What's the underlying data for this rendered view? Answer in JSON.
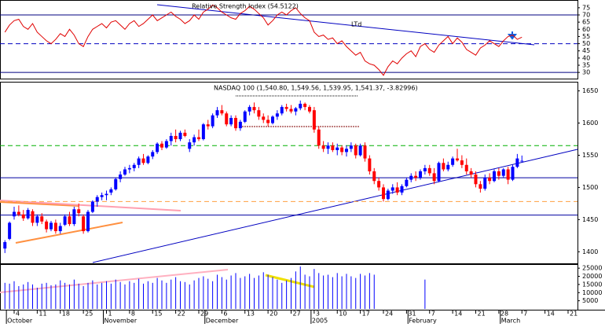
{
  "chart_data": {
    "type": "candlestick",
    "title": "NASDAQ 100 (1,540.80, 1,549.56, 1,539.95, 1,541.37, -3.82996)",
    "categories": [
      null,
      null,
      "4",
      null,
      null,
      null,
      null,
      "11",
      null,
      null,
      null,
      null,
      "18",
      null,
      null,
      null,
      null,
      "25",
      null,
      null,
      null,
      null,
      "1",
      null,
      null,
      null,
      null,
      "8",
      null,
      null,
      null,
      null,
      "15",
      null,
      null,
      null,
      null,
      "22",
      null,
      null,
      null,
      null,
      "29",
      null,
      null,
      null,
      null,
      "6",
      null,
      null,
      null,
      null,
      "13",
      null,
      null,
      null,
      null,
      "20",
      null,
      null,
      null,
      null,
      "27",
      null,
      null,
      null,
      null,
      "3",
      null,
      null,
      null,
      null,
      "10",
      null,
      null,
      null,
      null,
      "17",
      null,
      null,
      null,
      null,
      "24",
      null,
      null,
      null,
      null,
      "31",
      null,
      null,
      null,
      null,
      "7",
      null,
      null,
      null,
      null,
      "14",
      null,
      null,
      null,
      null,
      "21",
      null,
      null,
      null,
      null,
      "28",
      null,
      null,
      null,
      null,
      "7",
      null,
      null,
      null,
      null,
      "14",
      null,
      null,
      null,
      null,
      "21",
      null,
      null,
      null,
      null,
      null
    ],
    "months": [
      "October",
      "November",
      "December",
      "2005",
      "February",
      "March"
    ],
    "up_color": "#0000ff",
    "down_color": "#ff0000",
    "open": [
      1405,
      1420,
      1455,
      1462,
      1458,
      1452,
      1463,
      1445,
      1455,
      1447,
      1435,
      1445,
      1432,
      1442,
      1455,
      1443,
      1466,
      1455,
      1432,
      1462,
      1478,
      1485,
      1488,
      1492,
      1497,
      1513,
      1520,
      1528,
      1530,
      1535,
      1545,
      1538,
      1548,
      1555,
      1568,
      1562,
      1572,
      1580,
      1575,
      1585,
      1560,
      1570,
      1578,
      1575,
      1598,
      1595,
      1612,
      1620,
      1615,
      1598,
      1608,
      1592,
      1602,
      1618,
      1625,
      1620,
      1610,
      1605,
      1600,
      1610,
      1615,
      1625,
      1622,
      1618,
      1623,
      1630,
      1625,
      1620,
      1590,
      1565,
      1560,
      1565,
      1558,
      1562,
      1555,
      1560,
      1565,
      1550,
      1565,
      1545,
      1525,
      1510,
      1500,
      1482,
      1495,
      1500,
      1492,
      1502,
      1512,
      1518,
      1515,
      1525,
      1530,
      1522,
      1510,
      1538,
      1528,
      1535,
      1545,
      1542,
      1535,
      1525,
      1520,
      1505,
      1498,
      1515,
      1510,
      1525,
      1518,
      1528,
      1512,
      1532,
      1540.8,
      null,
      null,
      null,
      null,
      null,
      null,
      null,
      null,
      null,
      null,
      null,
      null,
      null,
      null,
      null
    ],
    "high": [
      1418,
      1447,
      1470,
      1472,
      1465,
      1468,
      1466,
      1458,
      1460,
      1450,
      1448,
      1450,
      1445,
      1458,
      1462,
      1470,
      1475,
      1458,
      1465,
      1480,
      1488,
      1492,
      1495,
      1500,
      1515,
      1525,
      1532,
      1535,
      1538,
      1548,
      1552,
      1550,
      1558,
      1570,
      1572,
      1575,
      1585,
      1590,
      1588,
      1590,
      1575,
      1582,
      1590,
      1600,
      1605,
      1615,
      1625,
      1628,
      1618,
      1612,
      1612,
      1605,
      1620,
      1628,
      1632,
      1625,
      1615,
      1612,
      1612,
      1620,
      1628,
      1630,
      1628,
      1625,
      1635,
      1632,
      1628,
      1625,
      1595,
      1572,
      1570,
      1570,
      1568,
      1565,
      1565,
      1570,
      1568,
      1568,
      1570,
      1550,
      1530,
      1515,
      1505,
      1498,
      1505,
      1508,
      1505,
      1515,
      1522,
      1525,
      1528,
      1535,
      1535,
      1530,
      1540,
      1545,
      1540,
      1548,
      1560,
      1550,
      1545,
      1530,
      1525,
      1510,
      1520,
      1522,
      1528,
      1530,
      1530,
      1532,
      1535,
      1552,
      1549.56,
      null,
      null,
      null,
      null,
      null,
      null,
      null,
      null,
      null,
      null,
      null,
      null,
      null,
      null,
      null
    ],
    "low": [
      1398,
      1418,
      1450,
      1455,
      1448,
      1450,
      1440,
      1440,
      1443,
      1430,
      1432,
      1428,
      1428,
      1440,
      1440,
      1440,
      1455,
      1428,
      1430,
      1460,
      1470,
      1480,
      1480,
      1488,
      1495,
      1508,
      1518,
      1522,
      1525,
      1530,
      1535,
      1536,
      1544,
      1552,
      1558,
      1560,
      1565,
      1570,
      1572,
      1578,
      1555,
      1565,
      1572,
      1573,
      1590,
      1592,
      1608,
      1612,
      1595,
      1595,
      1588,
      1588,
      1600,
      1612,
      1615,
      1605,
      1600,
      1595,
      1598,
      1605,
      1612,
      1618,
      1615,
      1612,
      1620,
      1620,
      1615,
      1585,
      1560,
      1555,
      1552,
      1555,
      1550,
      1550,
      1548,
      1555,
      1545,
      1548,
      1540,
      1520,
      1505,
      1495,
      1478,
      1480,
      1490,
      1488,
      1488,
      1500,
      1508,
      1510,
      1512,
      1520,
      1518,
      1505,
      1508,
      1525,
      1525,
      1532,
      1540,
      1530,
      1520,
      1515,
      1500,
      1492,
      1495,
      1505,
      1508,
      1512,
      1515,
      1505,
      1510,
      1530,
      1539.95,
      null,
      null,
      null,
      null,
      null,
      null,
      null,
      null,
      null,
      null,
      null,
      null,
      null,
      null,
      null
    ],
    "close": [
      1415,
      1445,
      1462,
      1458,
      1452,
      1465,
      1445,
      1455,
      1447,
      1435,
      1445,
      1432,
      1440,
      1455,
      1443,
      1466,
      1460,
      1432,
      1462,
      1478,
      1485,
      1488,
      1490,
      1497,
      1513,
      1520,
      1528,
      1530,
      1535,
      1545,
      1538,
      1548,
      1555,
      1568,
      1562,
      1572,
      1580,
      1575,
      1585,
      1580,
      1570,
      1578,
      1575,
      1598,
      1595,
      1612,
      1620,
      1615,
      1598,
      1608,
      1592,
      1602,
      1618,
      1625,
      1620,
      1610,
      1605,
      1600,
      1610,
      1615,
      1625,
      1622,
      1618,
      1623,
      1630,
      1625,
      1618,
      1590,
      1565,
      1560,
      1565,
      1558,
      1562,
      1555,
      1560,
      1565,
      1550,
      1565,
      1545,
      1525,
      1510,
      1500,
      1482,
      1495,
      1500,
      1492,
      1502,
      1512,
      1518,
      1515,
      1525,
      1530,
      1522,
      1510,
      1538,
      1528,
      1535,
      1545,
      1542,
      1535,
      1525,
      1520,
      1505,
      1498,
      1515,
      1510,
      1525,
      1518,
      1528,
      1512,
      1532,
      1545,
      1541.37,
      null,
      null,
      null,
      null,
      null,
      null,
      null,
      null,
      null,
      null,
      null,
      null,
      null,
      null,
      null
    ],
    "ylim": [
      1382,
      1663
    ],
    "yticks": [
      1400,
      1450,
      1500,
      1550,
      1600,
      1650
    ],
    "reference_lines": [
      {
        "value": 1565,
        "color": "#00b000",
        "style": "dashed"
      },
      {
        "value": 1515,
        "color": "#0000a0",
        "style": "solid"
      },
      {
        "value": 1478,
        "color": "#ffa040",
        "style": "dashed"
      },
      {
        "value": 1457,
        "color": "#0000a0",
        "style": "solid"
      }
    ],
    "indicator": {
      "type": "line",
      "title": "Relative Strength Index (54.5122)",
      "annotation": "LTd",
      "color": "#e00000",
      "values": [
        58,
        63,
        66,
        67,
        62,
        60,
        64,
        58,
        55,
        52,
        50,
        53,
        57,
        55,
        60,
        56,
        50,
        48,
        55,
        60,
        62,
        64,
        61,
        65,
        66,
        63,
        60,
        64,
        66,
        62,
        64,
        67,
        70,
        66,
        68,
        70,
        72,
        69,
        67,
        64,
        66,
        70,
        67,
        72,
        74,
        77,
        75,
        72,
        70,
        68,
        67,
        71,
        73,
        76,
        74,
        71,
        68,
        63,
        66,
        70,
        72,
        70,
        73,
        75,
        71,
        68,
        66,
        58,
        55,
        56,
        53,
        54,
        50,
        52,
        48,
        45,
        42,
        44,
        38,
        36,
        35,
        32,
        28,
        34,
        38,
        36,
        40,
        43,
        45,
        41,
        48,
        50,
        46,
        44,
        49,
        52,
        55,
        50,
        54,
        51,
        46,
        44,
        42,
        47,
        49,
        52,
        50,
        48,
        52,
        55,
        56,
        53,
        54.51,
        null,
        null,
        null,
        null,
        null,
        null,
        null,
        null,
        null,
        null,
        null,
        null,
        null,
        null,
        null
      ],
      "ylim": [
        25.7,
        79.3
      ],
      "yticks": [
        30,
        35,
        40,
        45,
        50,
        55,
        60,
        65,
        70,
        75
      ],
      "reference_lines": [
        {
          "value": 70,
          "color": "#000080",
          "style": "solid"
        },
        {
          "value": 50,
          "color": "#0000c0",
          "style": "dashed"
        },
        {
          "value": 30,
          "color": "#000080",
          "style": "solid"
        }
      ]
    },
    "volume": {
      "type": "bar",
      "color": "#0000ff",
      "values": [
        16000,
        15500,
        17000,
        14000,
        15000,
        16500,
        15000,
        13000,
        15500,
        16000,
        14500,
        15000,
        17500,
        16000,
        15000,
        18000,
        15500,
        14000,
        16000,
        17500,
        15000,
        16000,
        17000,
        15500,
        18000,
        16500,
        15000,
        17000,
        16000,
        18500,
        15500,
        17000,
        16000,
        19000,
        17500,
        16000,
        18000,
        19500,
        17000,
        16500,
        15000,
        17500,
        19000,
        20000,
        18500,
        17000,
        21000,
        19500,
        18000,
        20500,
        22000,
        19000,
        20000,
        21500,
        19000,
        20500,
        22500,
        21000,
        19500,
        18000,
        16000,
        17500,
        19000,
        23000,
        26000,
        21000,
        20000,
        24500,
        22000,
        20500,
        21000,
        19500,
        22000,
        20000,
        21500,
        20000,
        19000,
        21500,
        20500,
        22000,
        21000,
        null,
        null,
        null,
        null,
        null,
        null,
        null,
        null,
        null,
        null,
        18000,
        null,
        null,
        null,
        null,
        null,
        null,
        null,
        null,
        null,
        null,
        null,
        null,
        null,
        null,
        null,
        null,
        null,
        null,
        null,
        null,
        null,
        null,
        null,
        null,
        null,
        null,
        null,
        null,
        null,
        null,
        null,
        null,
        null,
        null,
        null,
        null
      ],
      "ylim": [
        0,
        27000
      ],
      "yticks": [
        5000,
        10000,
        15000,
        20000,
        25000
      ]
    }
  }
}
